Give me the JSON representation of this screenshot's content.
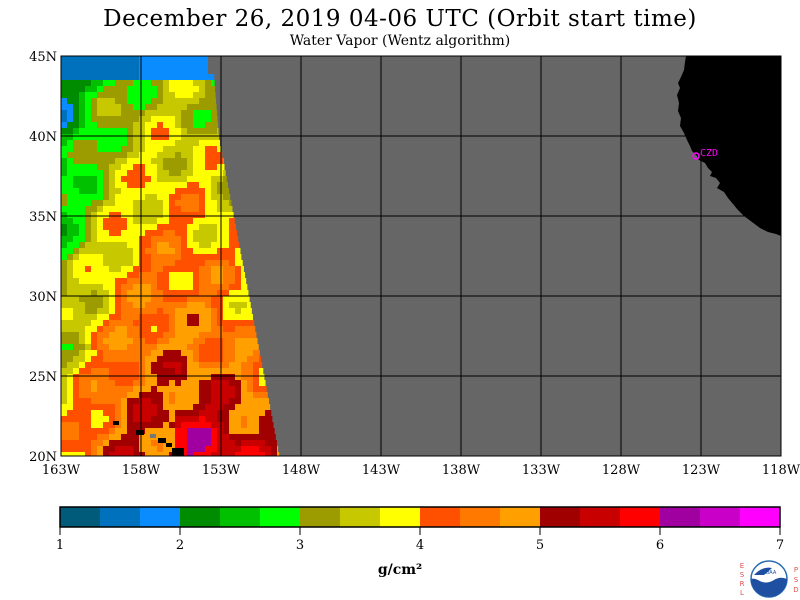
{
  "header": {
    "title": "December 26, 2019  04-06 UTC  (Orbit start time)",
    "subtitle": "Water Vapor (Wentz algorithm)"
  },
  "map": {
    "lat_labels": [
      "45N",
      "40N",
      "35N",
      "30N",
      "25N",
      "20N"
    ],
    "lon_labels": [
      "163W",
      "158W",
      "153W",
      "148W",
      "143W",
      "138W",
      "133W",
      "128W",
      "123W",
      "118W"
    ],
    "lat_range": [
      20,
      45
    ],
    "lon_range": [
      -163,
      -118
    ],
    "station_label": "CZD",
    "colors": {
      "no_data": "#666666",
      "land": "#000000",
      "station": "#ff00ff",
      "grid": "#000000"
    }
  },
  "colorbar": {
    "tick_labels": [
      "1",
      "2",
      "3",
      "4",
      "5",
      "6",
      "7"
    ],
    "unit_label": "g/cm²",
    "colors": [
      "#005a7a",
      "#0071bc",
      "#0a8cff",
      "#008c00",
      "#00c000",
      "#00ff00",
      "#9c9c00",
      "#c8c800",
      "#ffff00",
      "#ff5000",
      "#ff7800",
      "#ffa000",
      "#a00000",
      "#c80000",
      "#ff0000",
      "#a000a0",
      "#c800c8",
      "#ff00ff"
    ]
  },
  "logo": {
    "left_letters": "ESRL",
    "right_letters": "PSD",
    "center_text": "NOAA"
  }
}
